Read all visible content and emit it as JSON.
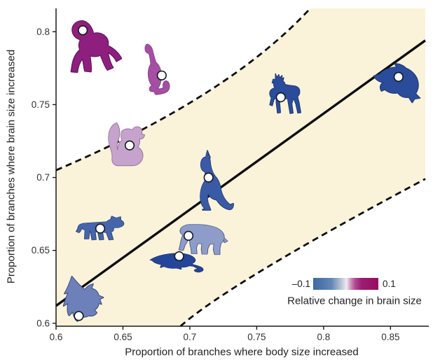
{
  "chart_data": {
    "type": "scatter",
    "xlabel": "Proportion of branches where body size increased",
    "ylabel": "Proportion of branches where brain size increased",
    "xlim": [
      0.6,
      0.876
    ],
    "ylim": [
      0.598,
      0.816
    ],
    "xticks": {
      "values": [
        0.6,
        0.65,
        0.7,
        0.75,
        0.8,
        0.85
      ],
      "labels": [
        "0.6",
        "0.65",
        "0.7",
        "0.75",
        "0.8",
        "0.85"
      ]
    },
    "yticks": {
      "values": [
        0.6,
        0.65,
        0.7,
        0.75,
        0.8
      ],
      "labels": [
        "0.6",
        "0.65",
        "0.7",
        "0.75",
        "0.8"
      ]
    },
    "points": [
      {
        "species": "primate",
        "x": 0.62,
        "y": 0.801,
        "fill": "#8e1f7f",
        "stroke": "#5e1254"
      },
      {
        "species": "mongoose",
        "x": 0.679,
        "y": 0.77,
        "fill": "#a44fa3",
        "stroke": "#7c337c"
      },
      {
        "species": "squirrel",
        "x": 0.655,
        "y": 0.722,
        "fill": "#c6a3cc",
        "stroke": "#8f6798"
      },
      {
        "species": "deer",
        "x": 0.768,
        "y": 0.755,
        "fill": "#2b4c9b",
        "stroke": "#16306e"
      },
      {
        "species": "dolphin",
        "x": 0.856,
        "y": 0.769,
        "fill": "#2b4c9b",
        "stroke": "#16306e"
      },
      {
        "species": "kangaroo",
        "x": 0.714,
        "y": 0.7,
        "fill": "#3a5aa5",
        "stroke": "#1d3a7a"
      },
      {
        "species": "cat",
        "x": 0.633,
        "y": 0.665,
        "fill": "#4765ab",
        "stroke": "#27427e"
      },
      {
        "species": "elephant",
        "x": 0.699,
        "y": 0.66,
        "fill": "#8e9cc9",
        "stroke": "#4d5e94"
      },
      {
        "species": "elephant shrew",
        "x": 0.692,
        "y": 0.646,
        "fill": "#24459a",
        "stroke": "#122c6b"
      },
      {
        "species": "bat",
        "x": 0.617,
        "y": 0.605,
        "fill": "#6d80ba",
        "stroke": "#2c3f72"
      }
    ],
    "regression_line": {
      "x": [
        0.6,
        0.876
      ],
      "y": [
        0.612,
        0.794
      ],
      "color": "#0d0d0d"
    },
    "confidence_band": {
      "fill": "#faf3d9",
      "upper_dashed": [
        [
          0.6,
          0.705
        ],
        [
          0.712,
          0.758
        ],
        [
          0.79,
          0.816
        ]
      ],
      "lower_dashed": [
        [
          0.693,
          0.598
        ],
        [
          0.757,
          0.638
        ],
        [
          0.876,
          0.699
        ]
      ]
    },
    "marker": {
      "fill": "#ffffff",
      "stroke": "#101820"
    },
    "colorbar": {
      "caption": "Relative change in brain size",
      "min_label": "–0.1",
      "max_label": "0.1",
      "gradient": [
        {
          "color": "#3c69a6",
          "pos": 0
        },
        {
          "color": "#6286b7",
          "pos": 28
        },
        {
          "color": "#c6cddc",
          "pos": 45
        },
        {
          "color": "#f1ebef",
          "pos": 51
        },
        {
          "color": "#cf9abe",
          "pos": 57
        },
        {
          "color": "#b04e92",
          "pos": 64
        },
        {
          "color": "#9d1c72",
          "pos": 74
        },
        {
          "color": "#960e62",
          "pos": 100
        }
      ]
    }
  }
}
